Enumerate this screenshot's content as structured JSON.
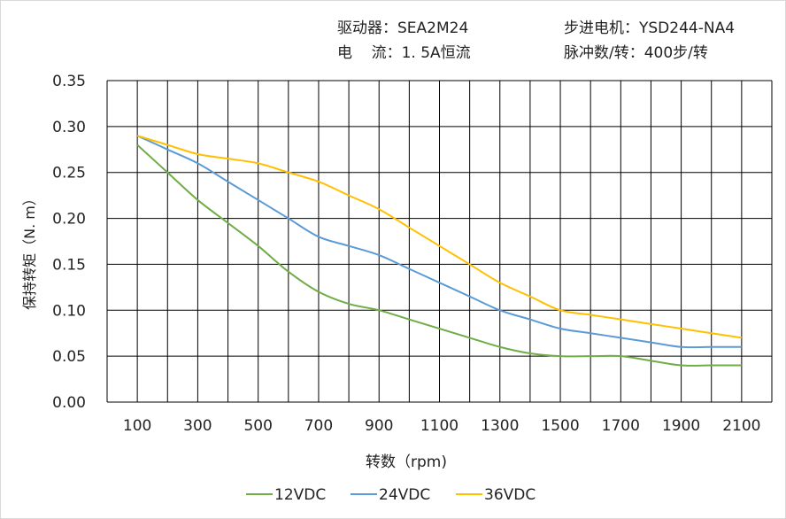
{
  "header": {
    "driver": "驱动器：SEA2M24",
    "motor": "步进电机：YSD244-NA4",
    "current": "电    流：1. 5A恒流",
    "pulses": "脉冲数/转：400步/转"
  },
  "chart_data": {
    "type": "line",
    "title": "",
    "xlabel": "转数（rpm)",
    "ylabel": "保持转矩（N. m）",
    "xlim": [
      0,
      2200
    ],
    "ylim": [
      0,
      0.35
    ],
    "xticks": [
      100,
      300,
      500,
      700,
      900,
      1100,
      1300,
      1500,
      1700,
      1900,
      2100
    ],
    "yticks": [
      "0.00",
      "0.05",
      "0.10",
      "0.15",
      "0.20",
      "0.25",
      "0.30",
      "0.35"
    ],
    "grid": true,
    "legend": "bottom",
    "x": [
      100,
      200,
      300,
      400,
      500,
      600,
      700,
      800,
      900,
      1000,
      1100,
      1200,
      1300,
      1400,
      1500,
      1600,
      1700,
      1800,
      1900,
      2000,
      2100
    ],
    "series": [
      {
        "name": "12VDC",
        "color": "#70ad47",
        "values": [
          0.28,
          0.25,
          0.22,
          0.195,
          0.17,
          0.142,
          0.12,
          0.107,
          0.1,
          0.09,
          0.08,
          0.07,
          0.06,
          0.053,
          0.05,
          0.05,
          0.05,
          0.045,
          0.04,
          0.04,
          0.04
        ]
      },
      {
        "name": "24VDC",
        "color": "#5b9bd5",
        "values": [
          0.29,
          0.275,
          0.26,
          0.24,
          0.22,
          0.2,
          0.18,
          0.17,
          0.16,
          0.145,
          0.13,
          0.115,
          0.1,
          0.09,
          0.08,
          0.075,
          0.07,
          0.065,
          0.06,
          0.06,
          0.06
        ]
      },
      {
        "name": "36VDC",
        "color": "#ffc000",
        "values": [
          0.29,
          0.28,
          0.27,
          0.265,
          0.26,
          0.25,
          0.24,
          0.225,
          0.21,
          0.19,
          0.17,
          0.15,
          0.13,
          0.115,
          0.1,
          0.095,
          0.09,
          0.085,
          0.08,
          0.075,
          0.07
        ]
      }
    ]
  }
}
